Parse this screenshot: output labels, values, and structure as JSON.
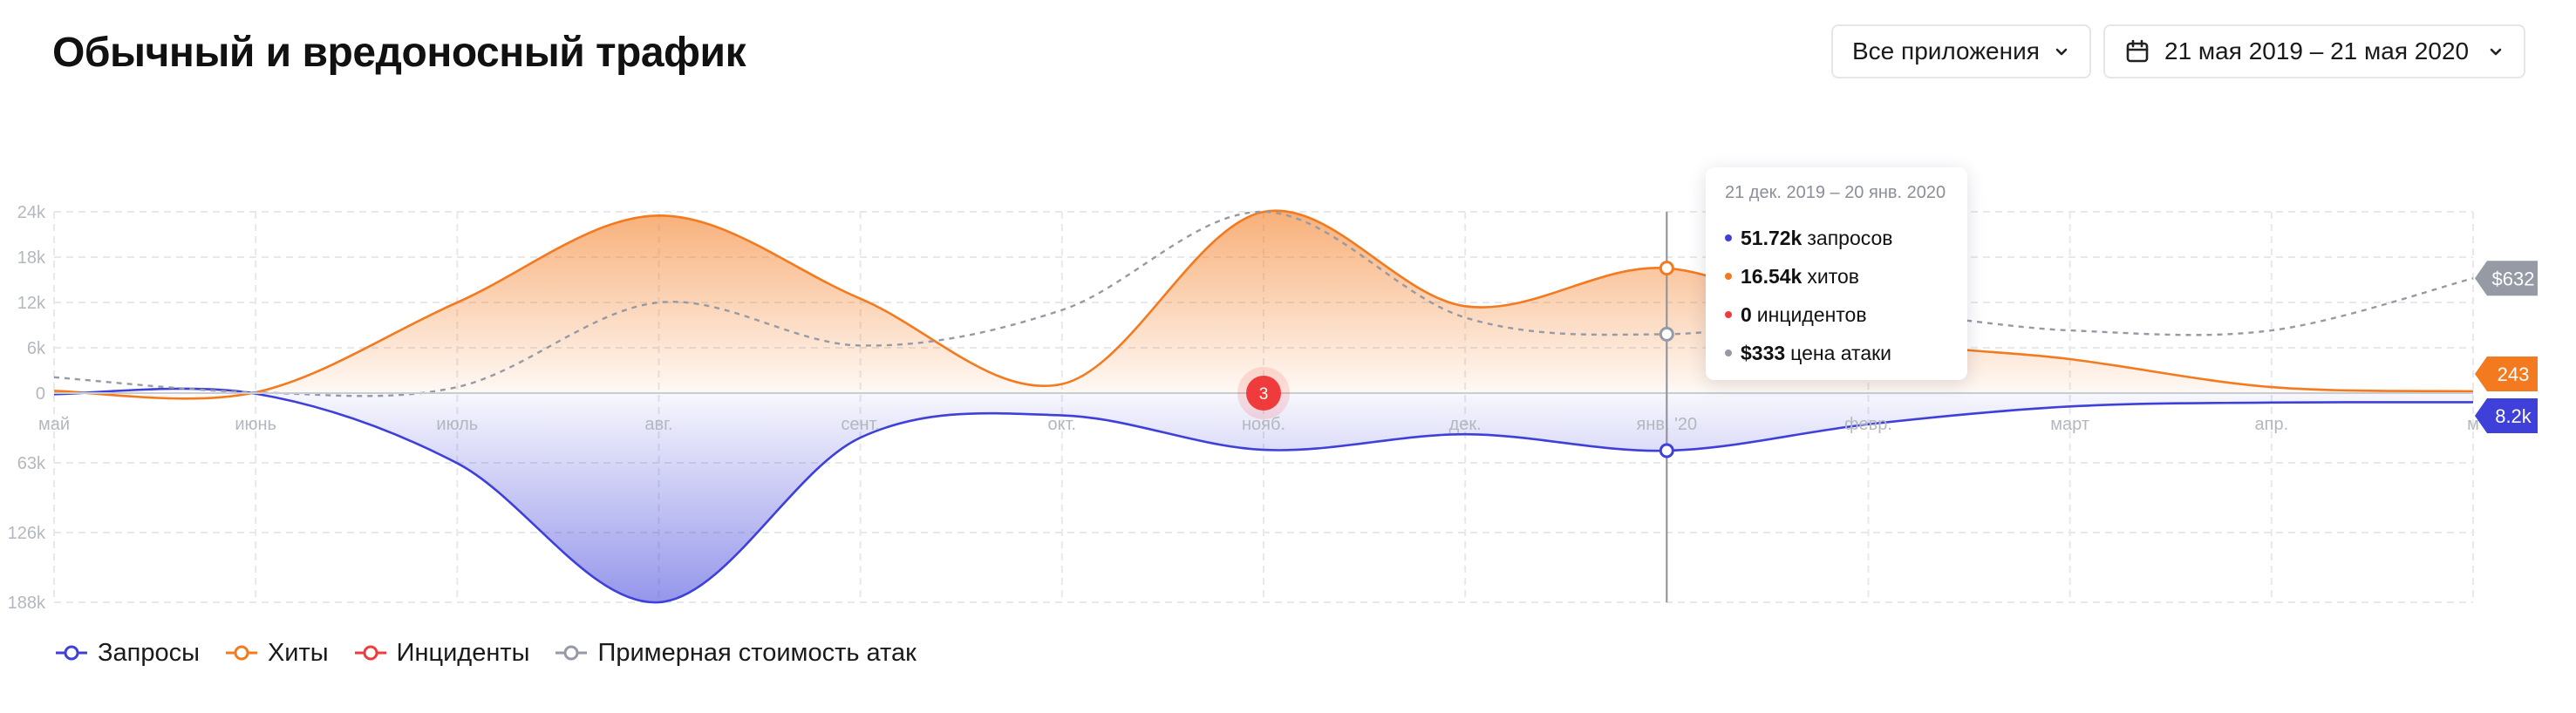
{
  "header": {
    "title": "Обычный и вредоносный трафик",
    "apps_filter": "Все приложения",
    "date_range": "21 мая 2019 – 21 мая 2020"
  },
  "colors": {
    "requests": "#3e40d9",
    "hits": "#f37a1f",
    "incidents": "#ef3b3b",
    "cost": "#959aa5",
    "grid": "#e6e8ec",
    "axis_text": "#b3b7be"
  },
  "icons": {
    "calendar": "calendar-icon",
    "chevron": "chevron-down-icon"
  },
  "legend": [
    {
      "label": "Запросы",
      "color": "#3e40d9"
    },
    {
      "label": "Хиты",
      "color": "#f37a1f"
    },
    {
      "label": "Инциденты",
      "color": "#ef3b3b"
    },
    {
      "label": "Примерная стоимость атак",
      "color": "#959aa5"
    }
  ],
  "tooltip": {
    "title": "21 дек. 2019 – 20 янв. 2020",
    "rows": [
      {
        "value": "51.72k",
        "label": "запросов",
        "color": "#3e40d9"
      },
      {
        "value": "16.54k",
        "label": "хитов",
        "color": "#f37a1f"
      },
      {
        "value": "0",
        "label": "инцидентов",
        "color": "#ef3b3b"
      },
      {
        "value": "$333",
        "label": "цена атаки",
        "color": "#959aa5"
      }
    ]
  },
  "chart_data": {
    "type": "area",
    "x_labels": [
      "май",
      "июнь",
      "июль",
      "авг.",
      "сент.",
      "окт.",
      "нояб.",
      "дек.",
      "янв. '20",
      "февр.",
      "март",
      "апр.",
      "м"
    ],
    "y_upper_ticks": [
      "24k",
      "18k",
      "12k",
      "6k",
      "0"
    ],
    "y_lower_ticks": [
      "63k",
      "126k",
      "188k"
    ],
    "y_upper_max": 24000,
    "y_lower_max": 188000,
    "grid": true,
    "legend_position": "bottom-left",
    "hits": {
      "name": "Хиты",
      "values": [
        300,
        100,
        12000,
        23500,
        12500,
        1200,
        24000,
        11500,
        16540,
        7500,
        4500,
        800,
        243
      ]
    },
    "requests": {
      "name": "Запросы",
      "values": [
        1000,
        500,
        63000,
        188000,
        40000,
        20000,
        51000,
        37000,
        51720,
        28000,
        12000,
        8500,
        8200
      ]
    },
    "cost_curve": {
      "name": "Примерная стоимость атак",
      "values": [
        2100,
        100,
        800,
        12000,
        6300,
        11000,
        24000,
        10000,
        7800,
        10500,
        8300,
        8300,
        15200
      ]
    },
    "incidents": [
      {
        "x_index": 6,
        "count": "3"
      }
    ],
    "hover_index": 8,
    "end_badges": {
      "cost": "$632",
      "hits": "243",
      "requests": "8.2k"
    }
  }
}
